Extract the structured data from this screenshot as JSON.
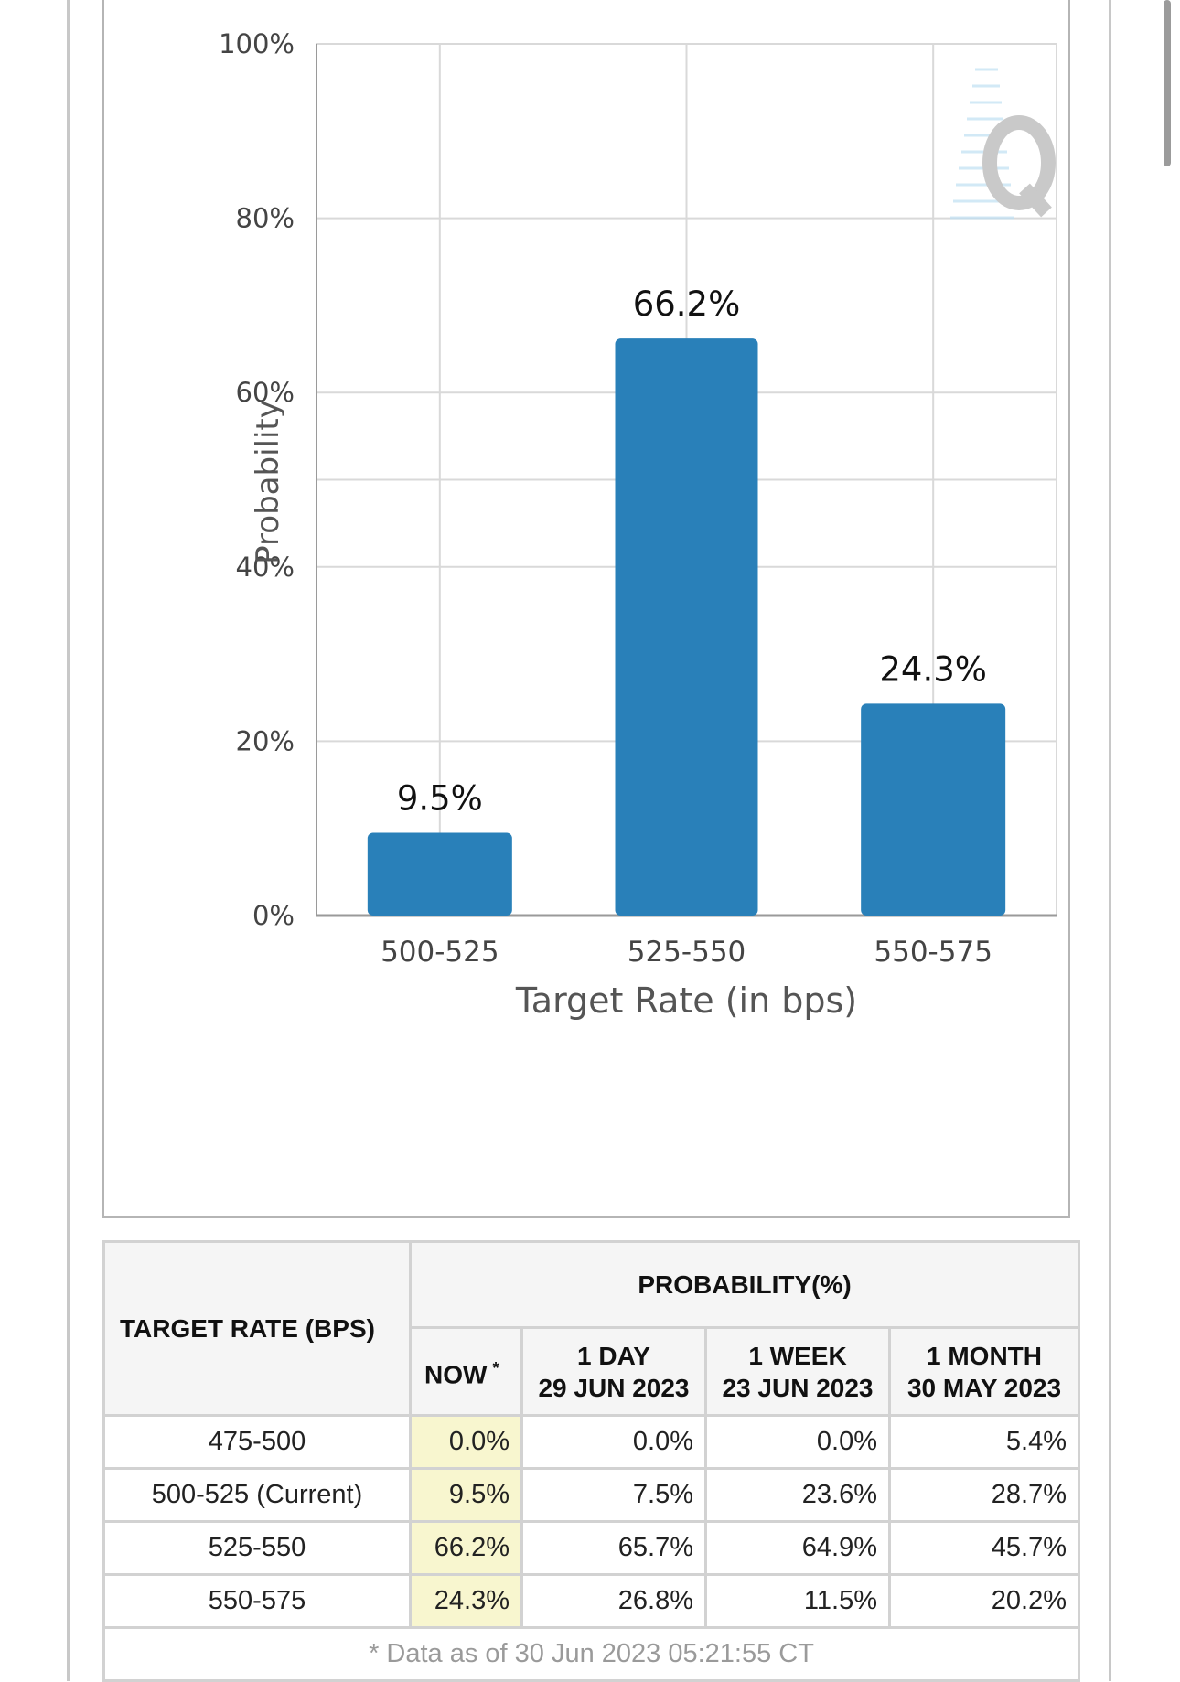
{
  "chart_data": {
    "type": "bar",
    "categories": [
      "500-525",
      "525-550",
      "550-575"
    ],
    "values": [
      9.5,
      66.2,
      24.3
    ],
    "value_labels": [
      "9.5%",
      "66.2%",
      "24.3%"
    ],
    "xlabel": "Target Rate (in bps)",
    "ylabel": "Probability",
    "ylim": [
      0,
      100
    ],
    "yticks": [
      0,
      20,
      40,
      60,
      80,
      100
    ],
    "ytick_labels": [
      "0%",
      "20%",
      "40%",
      "60%",
      "80%",
      "100%"
    ],
    "grid": true,
    "legend": "none",
    "bar_color": "#2980b9",
    "grid_color": "#d9d9d9"
  },
  "table": {
    "target_header": "TARGET RATE (BPS)",
    "probability_header": "PROBABILITY(%)",
    "columns": [
      {
        "line1": "NOW",
        "star": "*"
      },
      {
        "line1": "1 DAY",
        "line2": "29 JUN 2023"
      },
      {
        "line1": "1 WEEK",
        "line2": "23 JUN 2023"
      },
      {
        "line1": "1 MONTH",
        "line2": "30 MAY 2023"
      }
    ],
    "rows": [
      {
        "rate": "475-500",
        "now": "0.0%",
        "day": "0.0%",
        "week": "0.0%",
        "month": "5.4%"
      },
      {
        "rate": "500-525 (Current)",
        "now": "9.5%",
        "day": "7.5%",
        "week": "23.6%",
        "month": "28.7%"
      },
      {
        "rate": "525-550",
        "now": "66.2%",
        "day": "65.7%",
        "week": "64.9%",
        "month": "45.7%"
      },
      {
        "rate": "550-575",
        "now": "24.3%",
        "day": "26.8%",
        "week": "11.5%",
        "month": "20.2%"
      }
    ],
    "footnote": "* Data as of 30 Jun 2023 05:21:55 CT"
  },
  "colors": {
    "now_highlight": "#f8f6cf",
    "footnote_text": "#9a9a9a"
  }
}
